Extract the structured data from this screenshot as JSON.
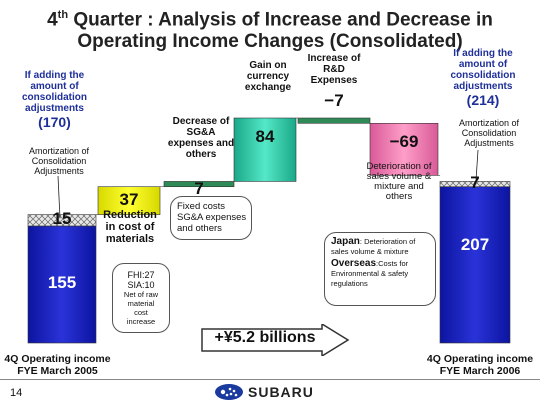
{
  "page": {
    "title_line1_pre": "4",
    "title_line1_sup": "th",
    "title_line1_post": " Quarter : Analysis of Increase and Decrease in",
    "title_line2": "Operating Income Changes (Consolidated)",
    "page_number": "14",
    "logo_text": "SUBARU"
  },
  "left": {
    "adj_note": [
      "If adding the",
      "amount of",
      "consolidation",
      "adjustments"
    ],
    "adj_value": "(170)",
    "amort_label": [
      "Amortization of",
      "Consolidation",
      "Adjustments"
    ],
    "footer": [
      "4Q Operating income",
      "FYE March 2005"
    ]
  },
  "right": {
    "adj_note": [
      "If adding the",
      "amount of",
      "consolidation",
      "adjustments"
    ],
    "adj_value": "(214)",
    "amort_label": [
      "Amortization of",
      "Consolidation",
      "Adjustments"
    ],
    "footer": [
      "4Q Operating income",
      "FYE March 2006"
    ]
  },
  "chart_data": {
    "type": "bar",
    "title": "",
    "categories": [
      "4Q Operating income FYE March 2005",
      "Reduction in cost of materials",
      "Decrease of SG&A expenses and others",
      "Gain on currency exchange",
      "Increase of R&D Expenses",
      "Deterioration of sales volume & mixture and others",
      "4Q Operating income FYE March 2006"
    ],
    "series": [
      {
        "name": "Operating income",
        "values": [
          155,
          null,
          null,
          null,
          null,
          null,
          207
        ]
      },
      {
        "name": "Amortization of Consolidation Adjustments",
        "values": [
          15,
          null,
          null,
          null,
          null,
          null,
          7
        ]
      },
      {
        "name": "Change",
        "values": [
          null,
          37,
          7,
          84,
          -7,
          -69,
          null
        ]
      }
    ],
    "value_labels": [
      "155",
      "15",
      "37",
      "7",
      "84",
      "−7",
      "−69",
      "7",
      "207"
    ],
    "bar_labels": {
      "reduction": [
        "Reduction",
        "in cost of",
        "materials"
      ],
      "sga": [
        "Decrease of",
        "SG&A",
        "expenses and",
        "others"
      ],
      "currency": [
        "Gain on",
        "currency",
        "exchange"
      ],
      "rnd": [
        "Increase of",
        "R&D",
        "Expenses"
      ],
      "deterioration": [
        "Deterioration of",
        "sales volume &",
        "mixture and",
        "others"
      ]
    },
    "callouts": {
      "fixed_costs": [
        "Fixed costs",
        "SG&A expenses",
        "and others"
      ],
      "fhi_sia": [
        "FHI:27",
        "SIA:10",
        "Net of raw",
        "material",
        "cost",
        "increase"
      ],
      "japan_label": "Japan",
      "japan_text": ": Deterioration of sales volume & mixture",
      "overseas_label": "Overseas",
      "overseas_text": ":Costs for Environmental & safety regulations"
    },
    "total_change": "+¥5.2 billions",
    "colors": {
      "blue_bar": "#1a1fb8",
      "yellow_bar": "#ffff00",
      "green_bar": "#2e8b57",
      "cyan_bar": "#33d0b0",
      "pink_bar": "#f080b0",
      "accent_text": "#1f2f9a"
    }
  }
}
